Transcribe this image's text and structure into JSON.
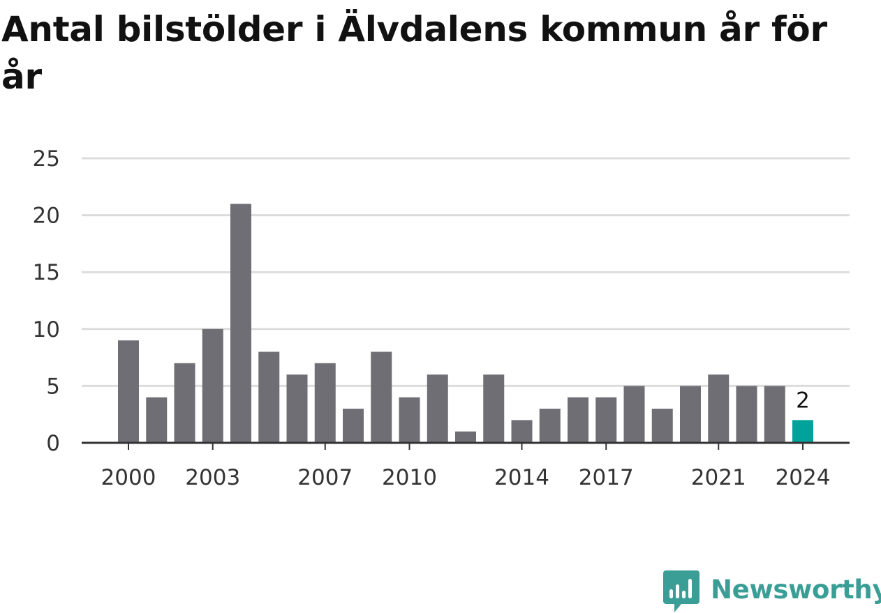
{
  "chart_data": {
    "type": "bar",
    "title": "Antal bilstölder i Älvdalens kommun år för år",
    "categories": [
      "2000",
      "2001",
      "2002",
      "2003",
      "2004",
      "2005",
      "2006",
      "2007",
      "2008",
      "2009",
      "2010",
      "2011",
      "2012",
      "2013",
      "2014",
      "2015",
      "2016",
      "2017",
      "2018",
      "2019",
      "2020",
      "2021",
      "2022",
      "2023",
      "2024"
    ],
    "values": [
      9,
      4,
      7,
      10,
      21,
      8,
      6,
      7,
      3,
      8,
      4,
      6,
      1,
      6,
      2,
      3,
      4,
      4,
      5,
      3,
      5,
      6,
      5,
      5,
      2
    ],
    "x_tick_labels": [
      "2000",
      "2003",
      "2007",
      "2010",
      "2014",
      "2017",
      "2021",
      "2024"
    ],
    "y_ticks": [
      0,
      5,
      10,
      15,
      20,
      25
    ],
    "ylim": [
      0,
      25
    ],
    "xlabel": "",
    "ylabel": "",
    "grid": "horizontal",
    "highlight": {
      "category": "2024",
      "label": "2"
    },
    "colors": {
      "bar": "#6f6e74",
      "highlight": "#00a29a",
      "grid": "#dcdcdc",
      "axis": "#333333"
    }
  },
  "brand": {
    "name": "Newsworthy",
    "logo_icon": "newsworthy-chart-bubble-icon",
    "color": "#3a9e96"
  }
}
